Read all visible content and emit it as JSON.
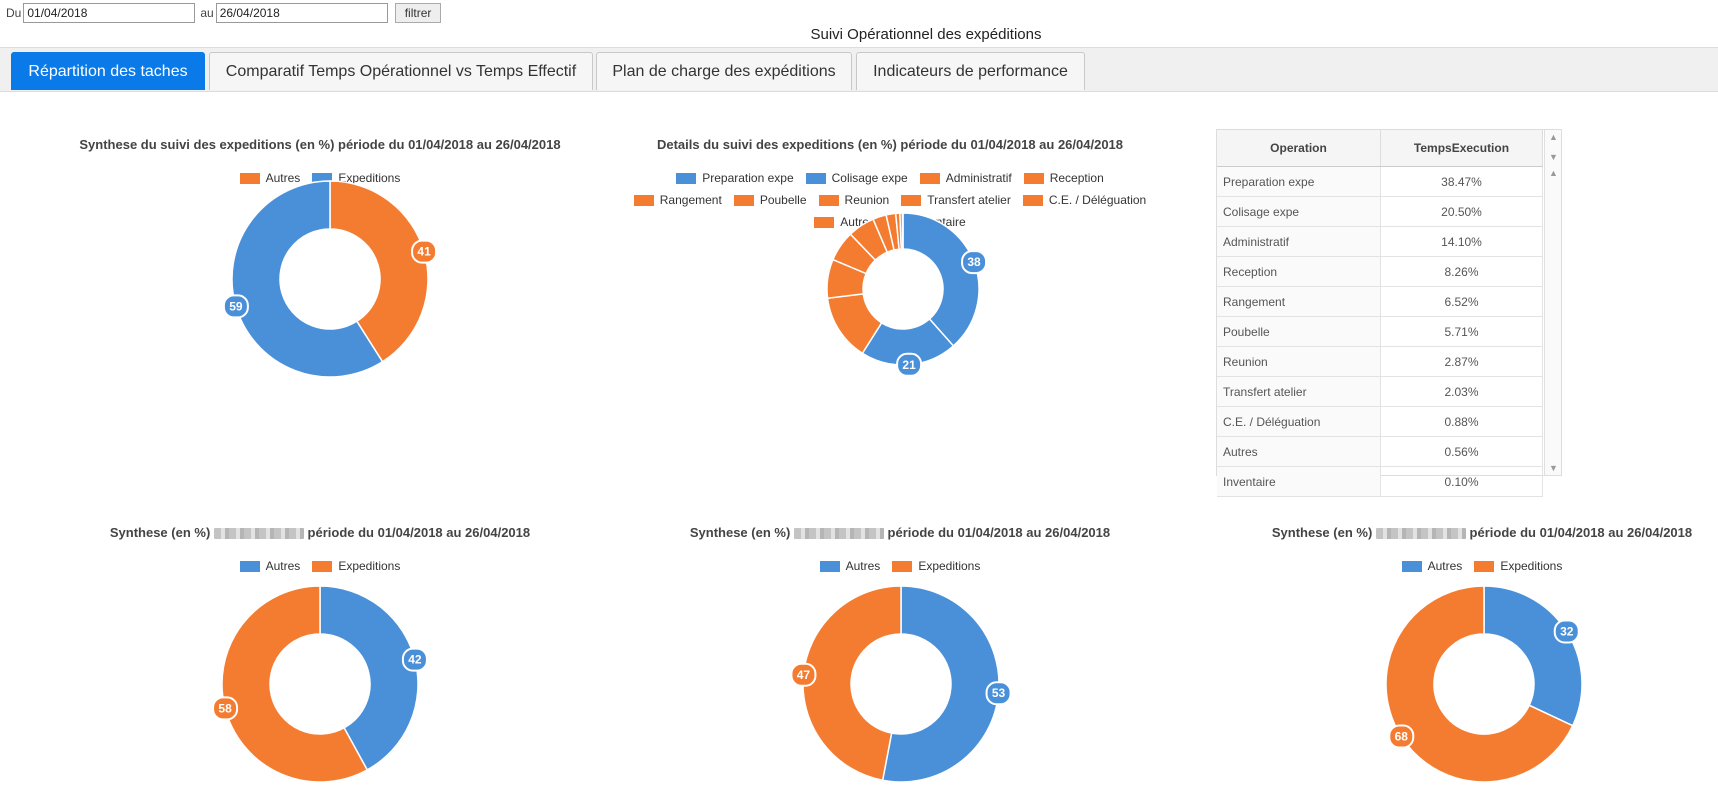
{
  "filter": {
    "from_label": "Du",
    "from_value": "01/04/2018",
    "to_label": "au",
    "to_value": "26/04/2018",
    "button": "filtrer"
  },
  "page_title": "Suivi Opérationnel des expéditions",
  "tabs": [
    {
      "label": "Répartition des taches",
      "active": true
    },
    {
      "label": "Comparatif Temps Opérationnel vs Temps Effectif",
      "active": false
    },
    {
      "label": "Plan de charge des expéditions",
      "active": false
    },
    {
      "label": "Indicateurs de performance",
      "active": false
    }
  ],
  "colors": {
    "blue": "#4a90d9",
    "orange": "#f47c30",
    "tab_active": "#0a7ae8"
  },
  "table": {
    "headers": [
      "Operation",
      "TempsExecution"
    ],
    "rows": [
      [
        "Preparation expe",
        "38.47%"
      ],
      [
        "Colisage expe",
        "20.50%"
      ],
      [
        "Administratif",
        "14.10%"
      ],
      [
        "Reception",
        "8.26%"
      ],
      [
        "Rangement",
        "6.52%"
      ],
      [
        "Poubelle",
        "5.71%"
      ],
      [
        "Reunion",
        "2.87%"
      ],
      [
        "Transfert atelier",
        "2.03%"
      ],
      [
        "C.E. / Déléguation",
        "0.88%"
      ],
      [
        "Autres",
        "0.56%"
      ],
      [
        "Inventaire",
        "0.10%"
      ]
    ]
  },
  "chart_data": [
    {
      "type": "pie",
      "title": "Synthese du suivi des expeditions (en %) période du 01/04/2018 au 26/04/2018",
      "categories": [
        "Autres",
        "Expeditions"
      ],
      "values": [
        41,
        59
      ],
      "colors": [
        "#f47c30",
        "#4a90d9"
      ],
      "data_labels": [
        "41",
        "59"
      ],
      "legend_position": "top"
    },
    {
      "type": "pie",
      "title": "Details du suivi des expeditions (en %) période du 01/04/2018 au 26/04/2018",
      "categories": [
        "Preparation expe",
        "Colisage expe",
        "Administratif",
        "Reception",
        "Rangement",
        "Poubelle",
        "Reunion",
        "Transfert atelier",
        "C.E. / Déléguation",
        "Autres",
        "Inventaire"
      ],
      "values": [
        38.47,
        20.5,
        14.1,
        8.26,
        6.52,
        5.71,
        2.87,
        2.03,
        0.88,
        0.56,
        0.1
      ],
      "colors": [
        "#4a90d9",
        "#4a90d9",
        "#f47c30",
        "#f47c30",
        "#f47c30",
        "#f47c30",
        "#f47c30",
        "#f47c30",
        "#f47c30",
        "#f47c30",
        "#f47c30"
      ],
      "data_labels": [
        "38",
        "21",
        "",
        "",
        "",
        "",
        "",
        "",
        "",
        "",
        ""
      ],
      "legend_position": "top"
    },
    {
      "type": "pie",
      "title_prefix": "Synthese (en %)",
      "title_suffix": "période du 01/04/2018 au 26/04/2018",
      "categories": [
        "Autres",
        "Expeditions"
      ],
      "values": [
        42,
        58
      ],
      "colors": [
        "#4a90d9",
        "#f47c30"
      ],
      "data_labels": [
        "42",
        "58"
      ],
      "legend_position": "top"
    },
    {
      "type": "pie",
      "title_prefix": "Synthese (en %)",
      "title_suffix": "période du 01/04/2018 au 26/04/2018",
      "categories": [
        "Autres",
        "Expeditions"
      ],
      "values": [
        53,
        47
      ],
      "colors": [
        "#4a90d9",
        "#f47c30"
      ],
      "data_labels": [
        "53",
        "47"
      ],
      "legend_position": "top"
    },
    {
      "type": "pie",
      "title_prefix": "Synthese (en %)",
      "title_suffix": "période du 01/04/2018 au 26/04/2018",
      "categories": [
        "Autres",
        "Expeditions"
      ],
      "values": [
        32,
        68
      ],
      "colors": [
        "#4a90d9",
        "#f47c30"
      ],
      "data_labels": [
        "32",
        "68"
      ],
      "legend_position": "top"
    }
  ]
}
